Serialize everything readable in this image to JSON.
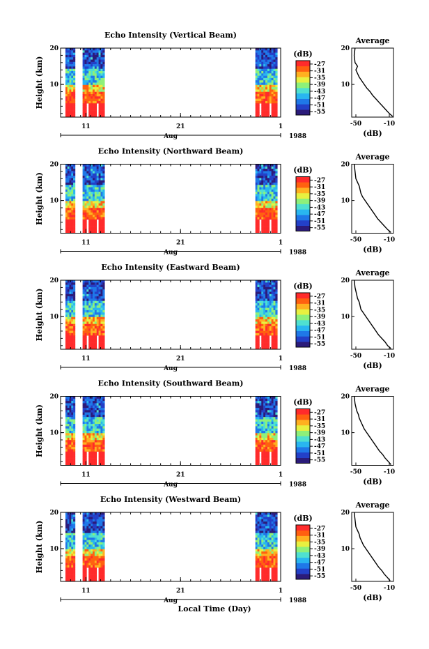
{
  "chart_data": {
    "type": "heatmap",
    "year": "1988",
    "month_label": "Aug",
    "x_ticks": [
      "11",
      "21",
      "1"
    ],
    "x_label": "Local Time (Day)",
    "y_label": "Height (km)",
    "y_ticks": [
      "20",
      "10"
    ],
    "ylim": [
      1,
      20
    ],
    "colorbar": {
      "unit": "(dB)",
      "ticks": [
        "-27",
        "-31",
        "-35",
        "-39",
        "-43",
        "-47",
        "-51",
        "-55"
      ],
      "range": [
        -57,
        -25
      ],
      "colors": [
        "#2b1b7a",
        "#2340c8",
        "#1f78e8",
        "#29b6f0",
        "#4fe0d0",
        "#8ef07a",
        "#e8f040",
        "#ffb020",
        "#ff6010",
        "#ff2b2b"
      ]
    },
    "panels": [
      {
        "title": "Echo Intensity (Vertical Beam)",
        "profile_title": "Average",
        "profile_xlabel": "(dB)",
        "profile_xticks": [
          "-50",
          "-10"
        ],
        "profile_xlim": [
          -55,
          -5
        ],
        "profile": [
          [
            20,
            -51
          ],
          [
            18,
            -52
          ],
          [
            16,
            -51
          ],
          [
            15,
            -48
          ],
          [
            14,
            -50
          ],
          [
            13,
            -48
          ],
          [
            12,
            -46
          ],
          [
            11,
            -43
          ],
          [
            10,
            -40
          ],
          [
            9,
            -37
          ],
          [
            8,
            -33
          ],
          [
            7,
            -30
          ],
          [
            6,
            -26
          ],
          [
            5,
            -22
          ],
          [
            4,
            -18
          ],
          [
            3,
            -14
          ],
          [
            2,
            -10
          ],
          [
            1.2,
            -6
          ]
        ]
      },
      {
        "title": "Echo Intensity (Northward Beam)",
        "profile_title": "Average",
        "profile_xlabel": "(dB)",
        "profile_xticks": [
          "-50",
          "-10"
        ],
        "profile_xlim": [
          -55,
          -5
        ],
        "profile": [
          [
            20,
            -52
          ],
          [
            18,
            -51
          ],
          [
            16,
            -50
          ],
          [
            15,
            -48
          ],
          [
            14,
            -46
          ],
          [
            13,
            -45
          ],
          [
            12,
            -44
          ],
          [
            11,
            -42
          ],
          [
            10,
            -39
          ],
          [
            9,
            -36
          ],
          [
            8,
            -33
          ],
          [
            7,
            -30
          ],
          [
            6,
            -27
          ],
          [
            5,
            -24
          ],
          [
            4,
            -20
          ],
          [
            3,
            -16
          ],
          [
            2,
            -12
          ],
          [
            1.2,
            -8
          ]
        ]
      },
      {
        "title": "Echo Intensity (Eastward Beam)",
        "profile_title": "Average",
        "profile_xlabel": "(dB)",
        "profile_xticks": [
          "-50",
          "-10"
        ],
        "profile_xlim": [
          -55,
          -5
        ],
        "profile": [
          [
            20,
            -52
          ],
          [
            18,
            -51
          ],
          [
            16,
            -49
          ],
          [
            15,
            -48
          ],
          [
            14,
            -46
          ],
          [
            13,
            -45
          ],
          [
            12,
            -44
          ],
          [
            11,
            -41
          ],
          [
            10,
            -38
          ],
          [
            9,
            -35
          ],
          [
            8,
            -32
          ],
          [
            7,
            -29
          ],
          [
            6,
            -26
          ],
          [
            5,
            -23
          ],
          [
            4,
            -19
          ],
          [
            3,
            -15
          ],
          [
            2,
            -12
          ],
          [
            1.2,
            -8
          ]
        ]
      },
      {
        "title": "Echo Intensity (Southward Beam)",
        "profile_title": "Average",
        "profile_xlabel": "(dB)",
        "profile_xticks": [
          "-50",
          "-10"
        ],
        "profile_xlim": [
          -55,
          -5
        ],
        "profile": [
          [
            20,
            -52
          ],
          [
            18,
            -51
          ],
          [
            16,
            -49
          ],
          [
            15,
            -47
          ],
          [
            14,
            -46
          ],
          [
            13,
            -44
          ],
          [
            12,
            -42
          ],
          [
            11,
            -40
          ],
          [
            10,
            -37
          ],
          [
            9,
            -34
          ],
          [
            8,
            -31
          ],
          [
            7,
            -28
          ],
          [
            6,
            -25
          ],
          [
            5,
            -22
          ],
          [
            4,
            -18
          ],
          [
            3,
            -15
          ],
          [
            2,
            -11
          ],
          [
            1.2,
            -8
          ]
        ]
      },
      {
        "title": "Echo Intensity (Westward Beam)",
        "profile_title": "Average",
        "profile_xlabel": "(dB)",
        "profile_xticks": [
          "-50",
          "-10"
        ],
        "profile_xlim": [
          -55,
          -5
        ],
        "profile": [
          [
            20,
            -52
          ],
          [
            18,
            -51
          ],
          [
            16,
            -50
          ],
          [
            15,
            -48
          ],
          [
            14,
            -46
          ],
          [
            13,
            -45
          ],
          [
            12,
            -43
          ],
          [
            11,
            -41
          ],
          [
            10,
            -38
          ],
          [
            9,
            -35
          ],
          [
            8,
            -32
          ],
          [
            7,
            -29
          ],
          [
            6,
            -26
          ],
          [
            5,
            -23
          ],
          [
            4,
            -19
          ],
          [
            3,
            -16
          ],
          [
            2,
            -12
          ],
          [
            1.2,
            -9
          ]
        ]
      }
    ]
  }
}
